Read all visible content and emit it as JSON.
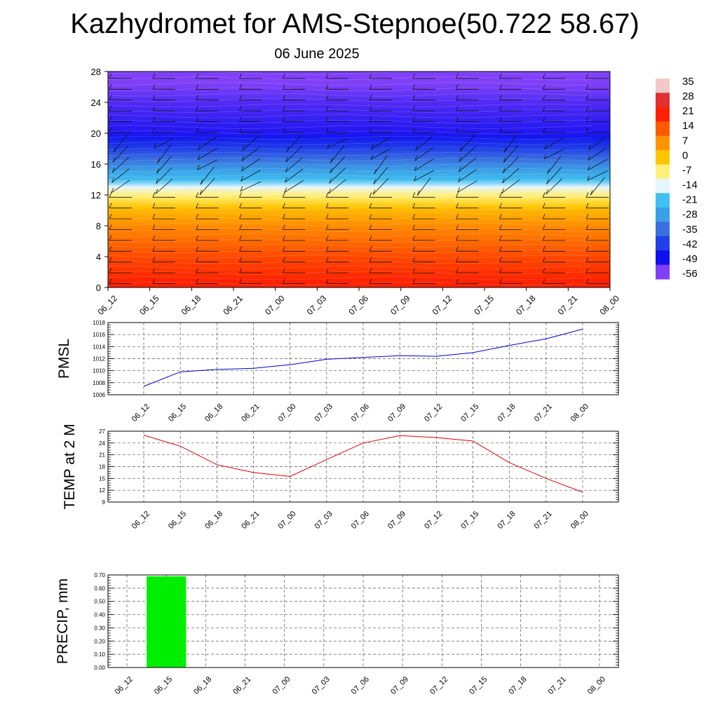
{
  "header": {
    "title": "Kazhydromet for AMS-Stepnoe(50.722 58.67)",
    "subtitle": "06 June 2025"
  },
  "chart_data": [
    {
      "type": "heatmap",
      "title": "",
      "xlabel": "",
      "ylabel": "",
      "x_tick_labels": [
        "06_12",
        "06_15",
        "06_18",
        "06_21",
        "07_00",
        "07_03",
        "07_06",
        "07_09",
        "07_12",
        "07_15",
        "07_18",
        "07_21",
        "08_00"
      ],
      "y_ticks": [
        0,
        4,
        8,
        12,
        16,
        20,
        24,
        28
      ],
      "ylim": [
        0,
        28
      ],
      "colorbar": {
        "labels": [
          "35",
          "28",
          "21",
          "14",
          "7",
          "0",
          "-7",
          "-14",
          "-21",
          "-28",
          "-35",
          "-42",
          "-49",
          "-56"
        ],
        "colors": [
          "#f2c8c8",
          "#e03030",
          "#ff2000",
          "#ff5a00",
          "#ff9400",
          "#ffc400",
          "#fff07a",
          "#e6f5ff",
          "#40c0f0",
          "#3aa0e6",
          "#3a70e0",
          "#2040e8",
          "#1010f0",
          "#8040f8"
        ]
      },
      "temperature_profile": [
        {
          "h": 0,
          "v": 22
        },
        {
          "h": 4,
          "v": 16
        },
        {
          "h": 8,
          "v": 8
        },
        {
          "h": 10,
          "v": 2
        },
        {
          "h": 12.5,
          "v": -10
        },
        {
          "h": 14,
          "v": -22
        },
        {
          "h": 16,
          "v": -32
        },
        {
          "h": 18,
          "v": -42
        },
        {
          "h": 20,
          "v": -50
        },
        {
          "h": 24,
          "v": -53
        },
        {
          "h": 28,
          "v": -58
        }
      ],
      "wind_barbs": "present"
    },
    {
      "type": "line",
      "ylabel": "PMSL",
      "categories": [
        "06_12",
        "06_15",
        "06_18",
        "06_21",
        "07_00",
        "07_03",
        "07_06",
        "07_09",
        "07_12",
        "07_15",
        "07_18",
        "07_21",
        "08_00"
      ],
      "values": [
        1007.4,
        1009.8,
        1010.2,
        1010.4,
        1011.0,
        1011.9,
        1012.2,
        1012.5,
        1012.4,
        1013.0,
        1014.2,
        1015.3,
        1016.9
      ],
      "ylim": [
        1006,
        1018
      ],
      "y_ticks": [
        1006,
        1008,
        1010,
        1012,
        1014,
        1016,
        1018
      ],
      "color": "#0000cc",
      "grid": true
    },
    {
      "type": "line",
      "ylabel": "TEMP at 2 M",
      "categories": [
        "06_12",
        "06_15",
        "06_18",
        "06_21",
        "07_00",
        "07_03",
        "07_06",
        "07_09",
        "07_12",
        "07_15",
        "07_18",
        "07_21",
        "08_00"
      ],
      "values": [
        26.0,
        23.2,
        18.5,
        16.5,
        15.5,
        19.8,
        24.0,
        25.9,
        25.4,
        24.5,
        19.0,
        15.0,
        11.5
      ],
      "ylim": [
        9,
        27
      ],
      "y_ticks": [
        9,
        12,
        15,
        18,
        21,
        24,
        27
      ],
      "color": "#dd0000",
      "grid": true
    },
    {
      "type": "bar",
      "ylabel": "PRECIP, mm",
      "categories": [
        "06_12",
        "06_15",
        "06_18",
        "06_21",
        "07_00",
        "07_03",
        "07_06",
        "07_09",
        "07_12",
        "07_15",
        "07_18",
        "07_21",
        "08_00"
      ],
      "values": [
        0,
        0.69,
        0,
        0,
        0,
        0,
        0,
        0,
        0,
        0,
        0,
        0,
        0
      ],
      "ylim": [
        0,
        0.7
      ],
      "y_ticks": [
        "0.00",
        "0.10",
        "0.20",
        "0.30",
        "0.40",
        "0.50",
        "0.60",
        "0.70"
      ],
      "color": "#00ee00",
      "grid": true
    }
  ]
}
